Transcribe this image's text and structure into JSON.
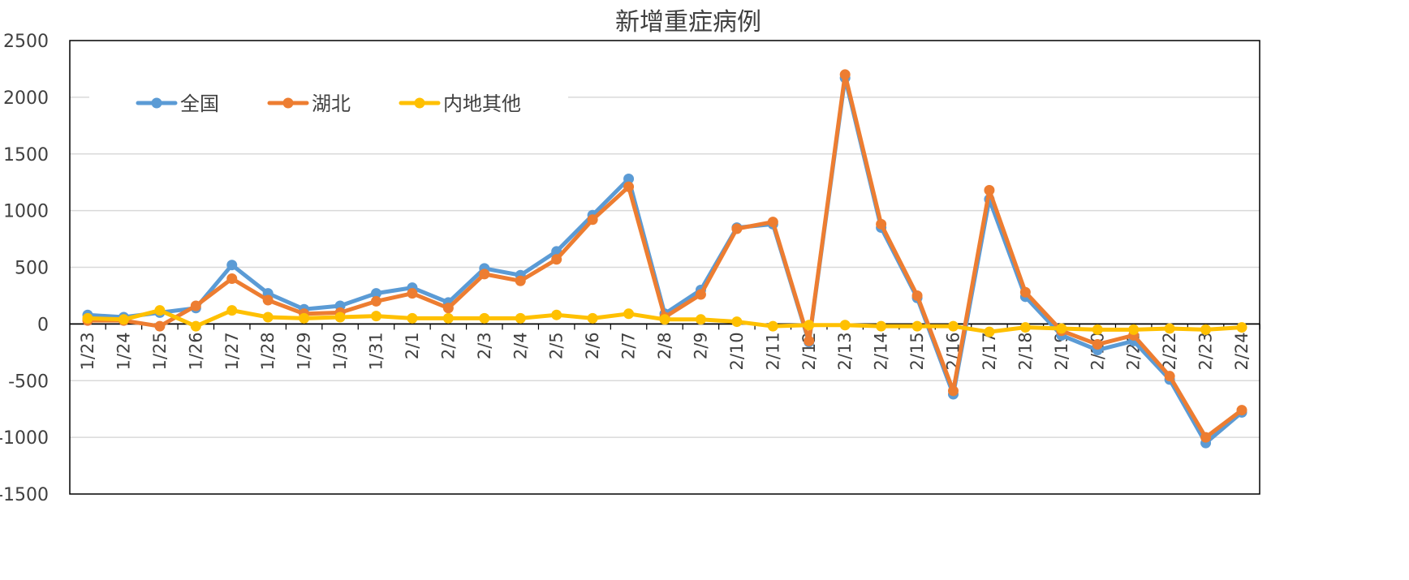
{
  "chart_data": {
    "type": "line",
    "title": "新增重症病例",
    "xlabel": "",
    "ylabel": "",
    "ylim": [
      -1500,
      2500
    ],
    "yticks": [
      -1500,
      -1000,
      -500,
      0,
      500,
      1000,
      1500,
      2000,
      2500
    ],
    "grid": true,
    "legend_position": "top-left",
    "categories": [
      "1/23",
      "1/24",
      "1/25",
      "1/26",
      "1/27",
      "1/28",
      "1/29",
      "1/30",
      "1/31",
      "2/1",
      "2/2",
      "2/3",
      "2/4",
      "2/5",
      "2/6",
      "2/7",
      "2/8",
      "2/9",
      "2/10",
      "2/11",
      "2/12",
      "2/13",
      "2/14",
      "2/15",
      "2/16",
      "2/17",
      "2/18",
      "2/19",
      "2/20",
      "2/21",
      "2/22",
      "2/23",
      "2/24"
    ],
    "series": [
      {
        "name": "全国",
        "color": "#5B9BD5",
        "values": [
          80,
          60,
          100,
          140,
          520,
          270,
          130,
          160,
          270,
          320,
          190,
          490,
          430,
          640,
          960,
          1280,
          90,
          300,
          850,
          880,
          -160,
          2170,
          850,
          230,
          -620,
          1100,
          240,
          -100,
          -230,
          -150,
          -490,
          -1050,
          -780
        ]
      },
      {
        "name": "湖北",
        "color": "#ED7D31",
        "values": [
          30,
          30,
          -20,
          160,
          400,
          210,
          90,
          100,
          200,
          270,
          140,
          440,
          380,
          570,
          920,
          1210,
          60,
          260,
          840,
          900,
          -150,
          2200,
          880,
          250,
          -590,
          1180,
          280,
          -60,
          -180,
          -100,
          -460,
          -1000,
          -760
        ]
      },
      {
        "name": "内地其他",
        "color": "#FFC000",
        "values": [
          50,
          40,
          120,
          -20,
          120,
          60,
          50,
          60,
          70,
          50,
          50,
          50,
          50,
          80,
          50,
          90,
          40,
          40,
          20,
          -20,
          -10,
          -10,
          -20,
          -20,
          -20,
          -70,
          -30,
          -40,
          -50,
          -50,
          -40,
          -50,
          -30
        ]
      }
    ]
  }
}
